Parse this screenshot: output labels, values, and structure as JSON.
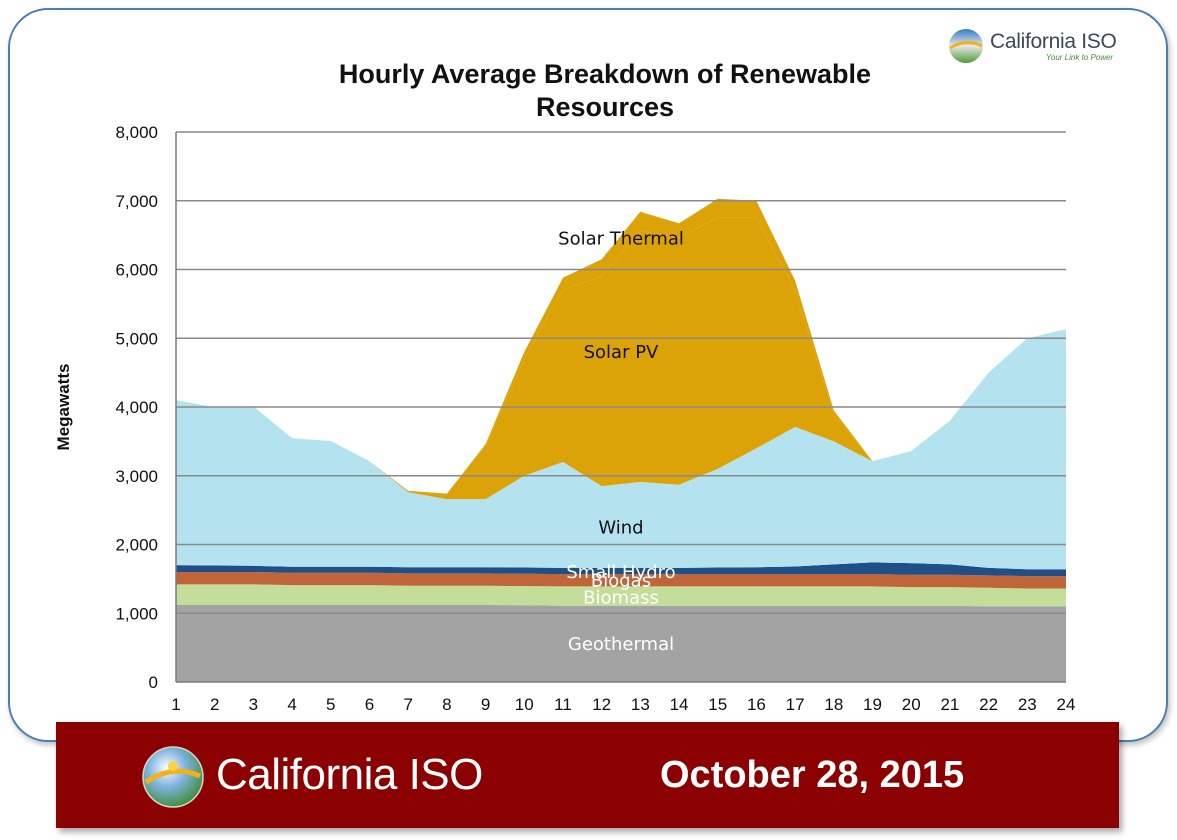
{
  "logo": {
    "name": "California ISO",
    "tagline": "Your Link to Power"
  },
  "banner": {
    "name": "California ISO",
    "date": "October 28, 2015"
  },
  "colors": {
    "geothermal": "#a3a3a3",
    "biomass": "#c4de9a",
    "biogas": "#c0653a",
    "small_hydro": "#1f4f87",
    "wind": "#b4e2ef",
    "solar_pv": "#dca309",
    "solar_thermal": "#dca309",
    "banner": "#8b0000"
  },
  "chart_data": {
    "type": "area",
    "stacked": true,
    "title": "Hourly Average Breakdown of Renewable Resources",
    "xlabel": "",
    "ylabel": "Megawatts",
    "ylim": [
      0,
      8000
    ],
    "yticks": [
      0,
      1000,
      2000,
      3000,
      4000,
      5000,
      6000,
      7000,
      8000
    ],
    "ytick_labels": [
      "0",
      "1,000",
      "2,000",
      "3,000",
      "4,000",
      "5,000",
      "6,000",
      "7,000",
      "8,000"
    ],
    "x": [
      1,
      2,
      3,
      4,
      5,
      6,
      7,
      8,
      9,
      10,
      11,
      12,
      13,
      14,
      15,
      16,
      17,
      18,
      19,
      20,
      21,
      22,
      23,
      24
    ],
    "grid": true,
    "legend": "inline labels",
    "series": [
      {
        "name": "Geothermal",
        "values": [
          1120,
          1120,
          1120,
          1120,
          1120,
          1120,
          1120,
          1120,
          1120,
          1115,
          1110,
          1110,
          1110,
          1110,
          1110,
          1110,
          1110,
          1110,
          1110,
          1110,
          1110,
          1100,
          1100,
          1100
        ]
      },
      {
        "name": "Biomass",
        "values": [
          300,
          300,
          300,
          290,
          290,
          290,
          280,
          280,
          280,
          280,
          280,
          280,
          280,
          280,
          280,
          280,
          280,
          280,
          280,
          270,
          270,
          270,
          260,
          260
        ]
      },
      {
        "name": "Biogas",
        "values": [
          180,
          180,
          180,
          180,
          180,
          180,
          180,
          180,
          180,
          180,
          180,
          180,
          180,
          180,
          180,
          180,
          180,
          180,
          180,
          180,
          180,
          180,
          180,
          180
        ]
      },
      {
        "name": "Small Hydro",
        "values": [
          100,
          95,
          90,
          85,
          85,
          85,
          90,
          90,
          90,
          90,
          90,
          90,
          90,
          90,
          95,
          100,
          110,
          140,
          170,
          170,
          150,
          110,
          100,
          100
        ]
      },
      {
        "name": "Wind",
        "values": [
          2400,
          2300,
          2320,
          1870,
          1830,
          1535,
          1090,
          990,
          990,
          1335,
          1540,
          1190,
          1250,
          1210,
          1435,
          1730,
          2030,
          1790,
          1470,
          1630,
          2090,
          2840,
          3360,
          3490
        ]
      },
      {
        "name": "Solar PV",
        "values": [
          0,
          0,
          0,
          0,
          0,
          0,
          20,
          80,
          780,
          1700,
          2500,
          3050,
          3650,
          3600,
          3650,
          3350,
          1980,
          400,
          0,
          0,
          0,
          0,
          0,
          0
        ]
      },
      {
        "name": "Solar Thermal",
        "values": [
          0,
          0,
          0,
          0,
          0,
          0,
          0,
          0,
          20,
          100,
          180,
          250,
          280,
          200,
          280,
          250,
          150,
          50,
          0,
          0,
          0,
          0,
          0,
          0
        ]
      }
    ],
    "annotations": [
      {
        "text": "Solar Thermal",
        "x": 12.5,
        "y": 6450
      },
      {
        "text": "Solar PV",
        "x": 12.5,
        "y": 4800
      },
      {
        "text": "Wind",
        "x": 12.5,
        "y": 2250
      },
      {
        "text": "Small Hydro",
        "x": 12.5,
        "y": 1600
      },
      {
        "text": "Biogas",
        "x": 12.5,
        "y": 1480
      },
      {
        "text": "Biomass",
        "x": 12.5,
        "y": 1230
      },
      {
        "text": "Geothermal",
        "x": 12.5,
        "y": 550
      }
    ]
  }
}
